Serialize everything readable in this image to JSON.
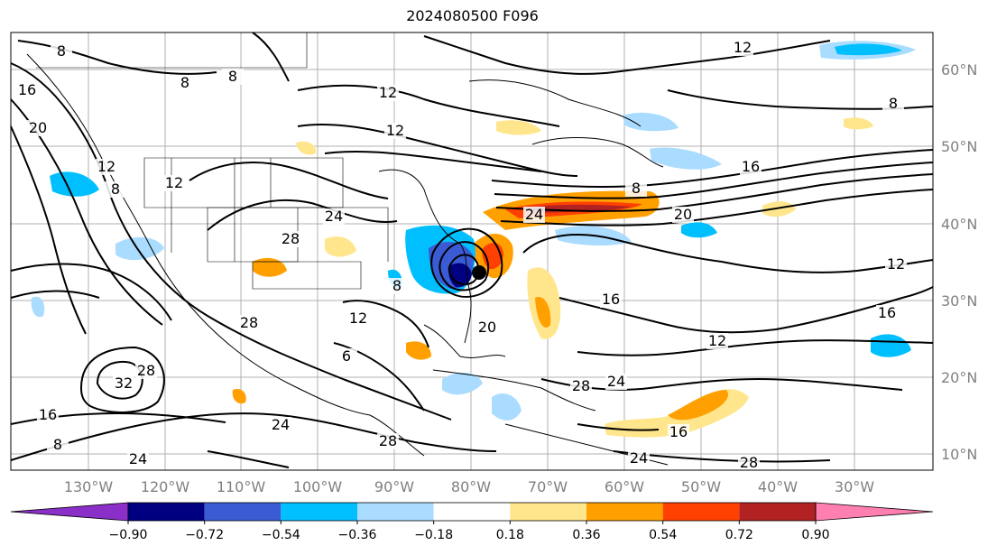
{
  "title": "2024080500 F096",
  "latitudes": [
    "60°N",
    "50°N",
    "40°N",
    "30°N",
    "20°N",
    "10°N"
  ],
  "longitudes": [
    "130°W",
    "120°W",
    "110°W",
    "100°W",
    "90°W",
    "80°W",
    "70°W",
    "60°W",
    "50°W",
    "40°W",
    "30°W"
  ],
  "colorbar": {
    "ticks": [
      "−0.90",
      "−0.72",
      "−0.54",
      "−0.36",
      "−0.18",
      "0.18",
      "0.36",
      "0.54",
      "0.72",
      "0.90"
    ],
    "colors": [
      "#8b2fc9",
      "#000080",
      "#3a5bd4",
      "#00bfff",
      "#aadcff",
      "#ffffff",
      "#ffe68c",
      "#ffa000",
      "#ff4000",
      "#b22222",
      "#ff80b0"
    ]
  },
  "contour_labels": [
    {
      "text": "8"
    },
    {
      "text": "8"
    },
    {
      "text": "8"
    },
    {
      "text": "12"
    },
    {
      "text": "12"
    },
    {
      "text": "12"
    },
    {
      "text": "16"
    },
    {
      "text": "20"
    },
    {
      "text": "12"
    },
    {
      "text": "8"
    },
    {
      "text": "12"
    },
    {
      "text": "24"
    },
    {
      "text": "28"
    },
    {
      "text": "8"
    },
    {
      "text": "24"
    },
    {
      "text": "20"
    },
    {
      "text": "16"
    },
    {
      "text": "12"
    },
    {
      "text": "16"
    },
    {
      "text": "16"
    },
    {
      "text": "20"
    },
    {
      "text": "12"
    },
    {
      "text": "6"
    },
    {
      "text": "28"
    },
    {
      "text": "32"
    },
    {
      "text": "28"
    },
    {
      "text": "16"
    },
    {
      "text": "24"
    },
    {
      "text": "28"
    },
    {
      "text": "24"
    },
    {
      "text": "16"
    },
    {
      "text": "24"
    },
    {
      "text": "28"
    },
    {
      "text": "8"
    },
    {
      "text": "24"
    },
    {
      "text": "28"
    },
    {
      "text": "8"
    },
    {
      "text": "12"
    },
    {
      "text": "8"
    }
  ]
}
